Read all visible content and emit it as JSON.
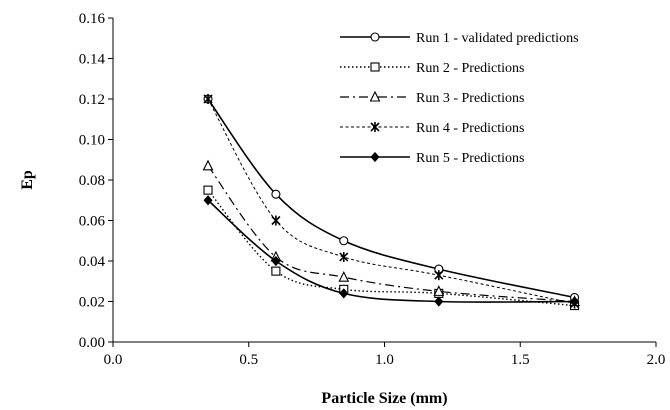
{
  "chart_data": {
    "type": "line",
    "title": "",
    "xlabel": "Particle Size (mm)",
    "ylabel": "Ep",
    "xlim": [
      0.0,
      2.0
    ],
    "ylim": [
      0.0,
      0.16
    ],
    "xticks": [
      "0.0",
      "0.5",
      "1.0",
      "1.5",
      "2.0"
    ],
    "yticks": [
      "0.00",
      "0.02",
      "0.04",
      "0.06",
      "0.08",
      "0.10",
      "0.12",
      "0.14",
      "0.16"
    ],
    "x": [
      0.35,
      0.6,
      0.85,
      1.2,
      1.7
    ],
    "grid": false,
    "legend_position": "top-right",
    "series": [
      {
        "name": "Run 1 - validated predictions",
        "values": [
          0.12,
          0.073,
          0.05,
          0.036,
          0.022
        ],
        "marker": "circle-open",
        "dash": "solid"
      },
      {
        "name": "Run 2 - Predictions",
        "values": [
          0.075,
          0.035,
          0.026,
          0.024,
          0.018
        ],
        "marker": "square-open",
        "dash": "dotted"
      },
      {
        "name": "Run 3 - Predictions",
        "values": [
          0.087,
          0.042,
          0.032,
          0.025,
          0.02
        ],
        "marker": "triangle-open",
        "dash": "dash-dot"
      },
      {
        "name": "Run 4 - Predictions",
        "values": [
          0.12,
          0.06,
          0.042,
          0.033,
          0.019
        ],
        "marker": "star",
        "dash": "dashed"
      },
      {
        "name": "Run 5 - Predictions",
        "values": [
          0.07,
          0.04,
          0.024,
          0.02,
          0.02
        ],
        "marker": "diamond-filled",
        "dash": "solid"
      }
    ]
  }
}
